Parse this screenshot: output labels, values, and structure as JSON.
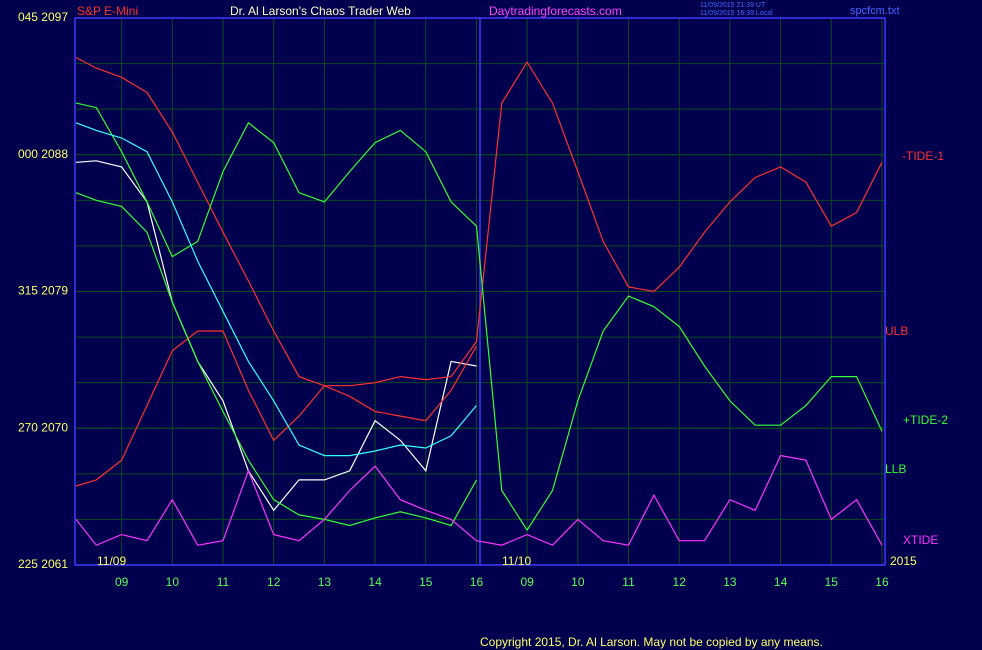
{
  "chart_data": {
    "type": "line",
    "title": "Dr. Al Larson's Chaos Trader Web",
    "subtitle": "Daytradingforecasts.com",
    "timestamps": [
      "11/09/2015 21:39 UT",
      "11/09/2015 16:39 Local"
    ],
    "file_name": "spcfcm.txt",
    "annotations": [
      "11/09",
      "11/10",
      "2015"
    ],
    "copyright": "Copyright 2015, Dr. Al Larson. May not be copied by any means.",
    "x": [
      0.1,
      0.5,
      1,
      1.5,
      2,
      2.5,
      3,
      3.5,
      4,
      4.5,
      5,
      5.5,
      6,
      6.5,
      7,
      7.5,
      8,
      8.5,
      9,
      9.5,
      10,
      10.5,
      11,
      11.5,
      12,
      12.5,
      13,
      13.5,
      14,
      14.5,
      15,
      15.5,
      16
    ],
    "xlim": [
      0.08,
      16.06
    ],
    "xticks": [
      {
        "value": 1,
        "label": "09"
      },
      {
        "value": 2,
        "label": "10"
      },
      {
        "value": 3,
        "label": "11"
      },
      {
        "value": 4,
        "label": "12"
      },
      {
        "value": 5,
        "label": "13"
      },
      {
        "value": 6,
        "label": "14"
      },
      {
        "value": 7,
        "label": "15"
      },
      {
        "value": 8,
        "label": "16"
      },
      {
        "value": 9,
        "label": "09"
      },
      {
        "value": 10,
        "label": "10"
      },
      {
        "value": 11,
        "label": "11"
      },
      {
        "value": 12,
        "label": "12"
      },
      {
        "value": 13,
        "label": "13"
      },
      {
        "value": 14,
        "label": "14"
      },
      {
        "value": 15,
        "label": "15"
      },
      {
        "value": 16,
        "label": "16"
      }
    ],
    "ylim": [
      2061,
      2097
    ],
    "yticks": [
      {
        "value": 2097,
        "label": "045 2097"
      },
      {
        "value": 2088,
        "label": "000 2088"
      },
      {
        "value": 2079,
        "label": "315 2079"
      },
      {
        "value": 2070,
        "label": "270 2070"
      },
      {
        "value": 2061,
        "label": "225 2061"
      }
    ],
    "ygrid": [
      2064,
      2067,
      2070,
      2073,
      2076,
      2079,
      2082,
      2085,
      2088,
      2091,
      2094
    ],
    "grid": true,
    "series": [
      {
        "name": "S&P E-Mini",
        "color": "#ffffff",
        "values": [
          2087.5,
          2087.6,
          2087.2,
          2084.9,
          2078.3,
          2074.4,
          2071.8,
          2067.2,
          2064.6,
          2066.6,
          2066.6,
          2067.2,
          2070.5,
          2069.2,
          2067.2,
          2074.4,
          2074.1,
          null,
          null,
          null,
          null,
          null,
          null,
          null,
          null,
          null,
          null,
          null,
          null,
          null,
          null,
          null,
          null
        ]
      },
      {
        "name": "-TIDE-1",
        "color": "#ff3030",
        "values": [
          2094.4,
          2093.7,
          2093.1,
          2092.1,
          2089.5,
          2086.2,
          2082.9,
          2079.7,
          2076.4,
          2073.4,
          2072.8,
          2072.8,
          2073.0,
          2073.4,
          2073.2,
          2073.4,
          2075.7,
          2091.4,
          2094.1,
          2091.4,
          2086.9,
          2082.3,
          2079.3,
          2079.0,
          2080.6,
          2082.9,
          2084.9,
          2086.5,
          2087.2,
          2086.2,
          2083.3,
          2084.2,
          2087.5
        ]
      },
      {
        "name": "ULB",
        "color": "#ff3030",
        "values": [
          2066.2,
          2066.6,
          2067.9,
          2071.5,
          2075.1,
          2076.4,
          2076.4,
          2072.5,
          2069.2,
          2070.8,
          2072.8,
          2072.1,
          2071.1,
          2070.8,
          2070.5,
          2072.5,
          2075.4,
          null,
          null,
          null,
          null,
          null,
          null,
          null,
          null,
          null,
          null,
          null,
          null,
          null,
          null,
          null,
          null
        ]
      },
      {
        "name": "+TIDE-2",
        "color": "#33ff33",
        "values": [
          2091.4,
          2091.1,
          2088.2,
          2084.9,
          2081.3,
          2082.3,
          2086.9,
          2090.1,
          2088.8,
          2085.5,
          2084.9,
          2086.9,
          2088.8,
          2089.6,
          2088.2,
          2084.9,
          2083.3,
          2065.9,
          2063.3,
          2065.9,
          2071.8,
          2076.4,
          2078.7,
          2078.0,
          2076.7,
          2074.1,
          2071.8,
          2070.2,
          2070.2,
          2071.5,
          2073.4,
          2073.4,
          2069.8
        ]
      },
      {
        "name": "LLB",
        "color": "#33ff33",
        "values": [
          2085.5,
          2085.0,
          2084.6,
          2082.9,
          2078.3,
          2074.4,
          2071.1,
          2067.9,
          2065.3,
          2064.3,
          2064.0,
          2063.6,
          2064.1,
          2064.5,
          2064.1,
          2063.6,
          2066.6,
          null,
          null,
          null,
          null,
          null,
          null,
          null,
          null,
          null,
          null,
          null,
          null,
          null,
          null,
          null,
          null
        ]
      },
      {
        "name": "XTIDE",
        "color": "#ff33ff",
        "values": [
          2064.0,
          2062.3,
          2063.0,
          2062.6,
          2065.3,
          2062.3,
          2062.6,
          2067.2,
          2063.0,
          2062.6,
          2064.0,
          2065.9,
          2067.5,
          2065.3,
          2064.6,
          2064.0,
          2062.6,
          2062.3,
          2063.0,
          2062.3,
          2064.0,
          2062.6,
          2062.3,
          2065.6,
          2062.6,
          2062.6,
          2065.3,
          2064.6,
          2068.2,
          2067.9,
          2064.0,
          2065.3,
          2062.3
        ]
      },
      {
        "color": "#33ffff",
        "values": [
          2090.1,
          2089.6,
          2089.1,
          2088.2,
          2084.9,
          2081.0,
          2077.7,
          2074.4,
          2071.8,
          2068.9,
          2068.2,
          2068.2,
          2068.5,
          2068.9,
          2068.7,
          2069.5,
          2071.5,
          null,
          null,
          null,
          null,
          null,
          null,
          null,
          null,
          null,
          null,
          null,
          null,
          null,
          null,
          null,
          null
        ]
      }
    ]
  }
}
